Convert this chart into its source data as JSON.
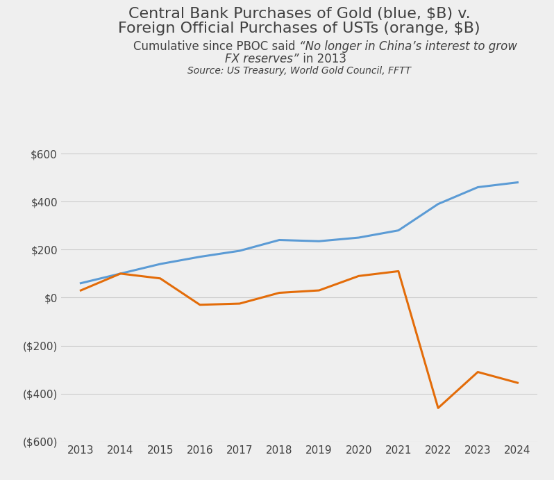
{
  "title_line1": "Central Bank Purchases of Gold (blue, $B) v.",
  "title_line2": "Foreign Official Purchases of USTs (orange, $B)",
  "subtitle_normal": "Cumulative since PBOC said ",
  "subtitle_italic": "“No longer in China’s interest to grow\nFX reserves”",
  "subtitle_end": " in 2013",
  "source": "Source: US Treasury, World Gold Council, FFTT",
  "years": [
    2013,
    2014,
    2015,
    2016,
    2017,
    2018,
    2019,
    2020,
    2021,
    2022,
    2023,
    2024
  ],
  "blue_values": [
    60,
    100,
    140,
    170,
    195,
    240,
    235,
    250,
    280,
    390,
    460,
    480
  ],
  "orange_values": [
    30,
    100,
    80,
    -30,
    -25,
    20,
    30,
    90,
    110,
    -460,
    -310,
    -355
  ],
  "blue_color": "#5B9BD5",
  "orange_color": "#E36C09",
  "ylim": [
    -600,
    700
  ],
  "yticks": [
    -600,
    -400,
    -200,
    0,
    200,
    400,
    600
  ],
  "ytick_labels": [
    "($600)",
    "($400)",
    "($200)",
    "$0",
    "$200",
    "$400",
    "$600"
  ],
  "background_color": "#EFEFEF",
  "grid_color": "#CCCCCC",
  "text_color": "#404040",
  "line_width": 2.2,
  "title_fontsize": 16,
  "subtitle_fontsize": 12,
  "source_fontsize": 10,
  "tick_fontsize": 11
}
